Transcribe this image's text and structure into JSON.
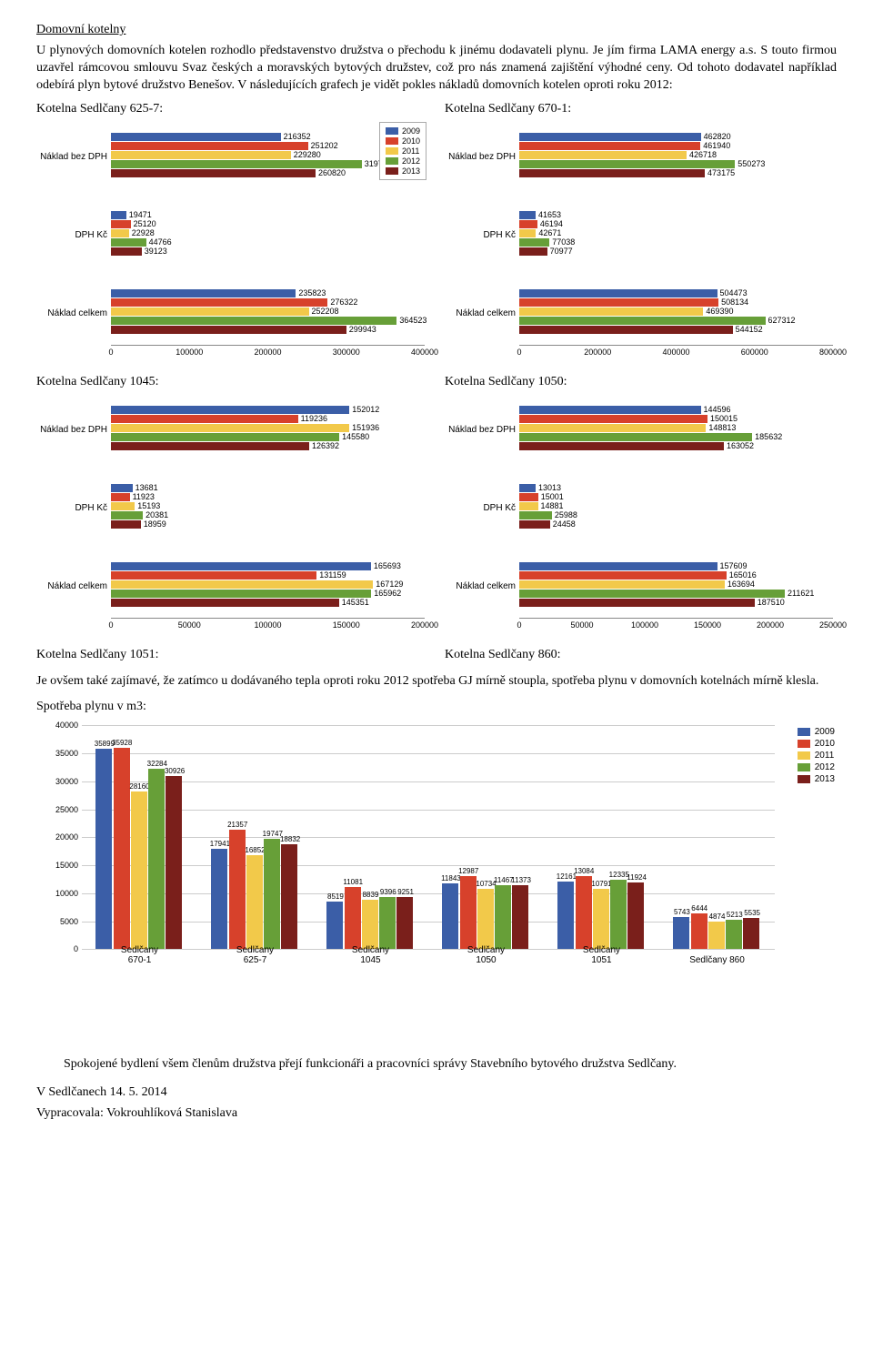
{
  "colors": {
    "2009": "#3b5ea7",
    "2010": "#d7412b",
    "2011": "#f2c94a",
    "2012": "#679f38",
    "2013": "#7a1f1b"
  },
  "years": [
    "2009",
    "2010",
    "2011",
    "2012",
    "2013"
  ],
  "header": {
    "title": "Domovní kotelny",
    "p1": "U plynových domovních kotelen rozhodlo představenstvo družstva o přechodu k jinému dodavateli plynu. Je jím firma LAMA energy a.s. S touto firmou uzavřel rámcovou smlouvu Svaz českých a moravských bytových družstev, což pro nás znamená zajištění výhodné ceny. Od tohoto dodavatel například odebírá plyn bytové družstvo Benešov. V následujících grafech je vidět pokles nákladů domovních kotelen oproti roku 2012:"
  },
  "hcharts": [
    {
      "id": "c625",
      "title": "Kotelna Sedlčany 625-7:",
      "title_r": "Kotelna Sedlčany 670-1:",
      "xmax": 400000,
      "xstep": 100000,
      "show_legend": true,
      "groups": [
        {
          "label": "Náklad bez DPH",
          "vals": [
            216352,
            251202,
            229280,
            319757,
            260820
          ]
        },
        {
          "label": "DPH Kč",
          "vals": [
            19471,
            25120,
            22928,
            44766,
            39123
          ]
        },
        {
          "label": "Náklad celkem",
          "vals": [
            235823,
            276322,
            252208,
            364523,
            299943
          ]
        }
      ]
    },
    {
      "id": "c670",
      "xmax": 800000,
      "xstep": 200000,
      "show_legend": false,
      "groups": [
        {
          "label": "Náklad bez DPH",
          "vals": [
            462820,
            461940,
            426718,
            550273,
            473175
          ]
        },
        {
          "label": "DPH Kč",
          "vals": [
            41653,
            46194,
            42671,
            77038,
            70977
          ]
        },
        {
          "label": "Náklad celkem",
          "vals": [
            504473,
            508134,
            469390,
            627312,
            544152
          ]
        }
      ]
    },
    {
      "id": "c1045",
      "title": "Kotelna Sedlčany 1045:",
      "title_r": "Kotelna Sedlčany 1050:",
      "xmax": 200000,
      "xstep": 50000,
      "show_legend": false,
      "groups": [
        {
          "label": "Náklad bez DPH",
          "vals": [
            152012,
            119236,
            151936,
            145580,
            126392
          ]
        },
        {
          "label": "DPH Kč",
          "vals": [
            13681,
            11923,
            15193,
            20381,
            18959
          ]
        },
        {
          "label": "Náklad celkem",
          "vals": [
            165693,
            131159,
            167129,
            165962,
            145351
          ]
        }
      ]
    },
    {
      "id": "c1050",
      "xmax": 250000,
      "xstep": 50000,
      "show_legend": false,
      "groups": [
        {
          "label": "Náklad bez DPH",
          "vals": [
            144596,
            150015,
            148813,
            185632,
            163052
          ]
        },
        {
          "label": "DPH Kč",
          "vals": [
            13013,
            15001,
            14881,
            25988,
            24458
          ]
        },
        {
          "label": "Náklad celkem",
          "vals": [
            157609,
            165016,
            163694,
            211621,
            187510
          ]
        }
      ]
    }
  ],
  "below_titles": {
    "left": "Kotelna Sedlčany 1051:",
    "right": "Kotelna Sedlčany 860:"
  },
  "mid_para": "Je ovšem také zajímavé, že zatímco u dodávaného tepla oproti roku 2012 spotřeba GJ mírně stoupla, spotřeba plynu v domovních kotelnách mírně klesla.",
  "vchart_title": "Spotřeba plynu v m3:",
  "vchart": {
    "ymax": 40000,
    "ystep": 5000,
    "cats": [
      "Sedlčany 670-1",
      "Sedlčany 625-7",
      "Sedlčany 1045",
      "Sedlčany 1050",
      "Sedlčany 1051",
      "Sedlčany 860"
    ],
    "series": {
      "2009": [
        35899,
        17941,
        8519,
        11843,
        12161,
        5743
      ],
      "2010": [
        35928,
        21357,
        11081,
        12987,
        13084,
        6444
      ],
      "2011": [
        28160,
        16852,
        8839,
        10734,
        10791,
        4874
      ],
      "2012": [
        32284,
        19747,
        9396,
        11467,
        12335,
        5213
      ],
      "2013": [
        30926,
        18832,
        9251,
        11373,
        11924,
        5535
      ]
    }
  },
  "footer": {
    "p1": "Spokojené bydlení všem členům družstva přejí funkcionáři  a pracovníci správy Stavebního bytového družstva Sedlčany.",
    "p2": "V Sedlčanech 14. 5. 2014",
    "p3": "Vypracovala: Vokrouhlíková Stanislava"
  }
}
